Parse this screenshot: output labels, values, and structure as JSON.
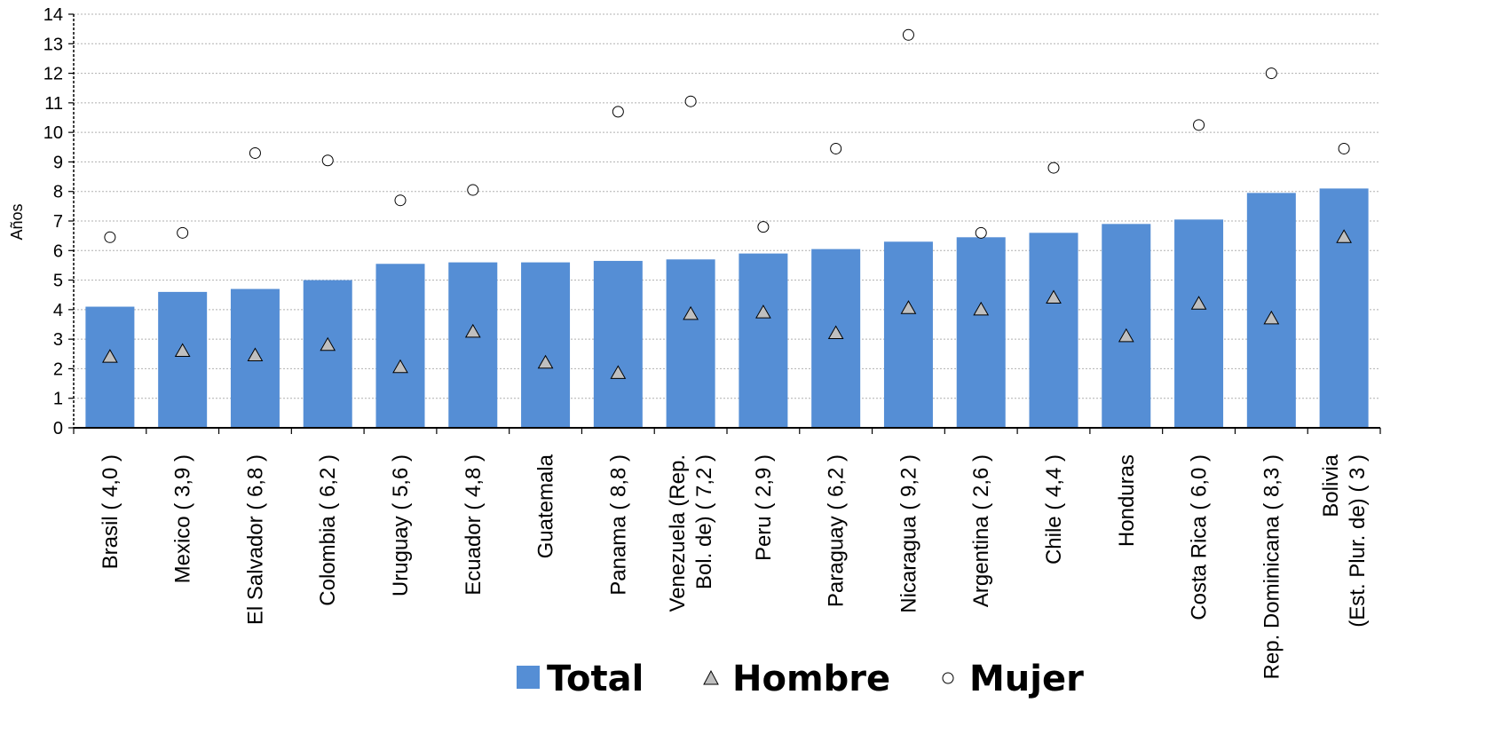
{
  "chart_data": {
    "type": "bar",
    "ylabel": "Años",
    "xlabel": "",
    "ylim": [
      0,
      14
    ],
    "yticks": [
      0,
      1,
      2,
      3,
      4,
      5,
      6,
      7,
      8,
      9,
      10,
      11,
      12,
      13,
      14
    ],
    "grid": true,
    "legend_position": "bottom",
    "categories": [
      [
        "Brasil  ( 4,0 )"
      ],
      [
        "Mexico ( 3,9 )"
      ],
      [
        "El Salvador ( 6,8 )"
      ],
      [
        "Colombia ( 6,2 )"
      ],
      [
        "Uruguay ( 5,6 )"
      ],
      [
        "Ecuador  ( 4,8 )"
      ],
      [
        "Guatemala"
      ],
      [
        "Panama ( 8,8 )"
      ],
      [
        "Venezuela (Rep.",
        "Bol. de)  ( 7,2 )"
      ],
      [
        "Peru  ( 2,9 )"
      ],
      [
        "Paraguay ( 6,2 )"
      ],
      [
        "Nicaragua ( 9,2 )"
      ],
      [
        "Argentina  ( 2,6 )"
      ],
      [
        "Chile  ( 4,4 )"
      ],
      [
        "Honduras"
      ],
      [
        "Costa Rica ( 6,0 )"
      ],
      [
        "Rep. Dominicana ( 8,3 )"
      ],
      [
        "Bolivia",
        "(Est. Plur. de) ( 3 )"
      ]
    ],
    "series": [
      {
        "name": "Total",
        "type": "bar",
        "color": "#558ed5",
        "values": [
          4.1,
          4.6,
          4.7,
          5.0,
          5.55,
          5.6,
          5.6,
          5.65,
          5.7,
          5.9,
          6.05,
          6.3,
          6.45,
          6.6,
          6.9,
          7.05,
          7.95,
          8.1
        ]
      },
      {
        "name": "Hombre",
        "type": "marker",
        "marker": "triangle",
        "color": "#bfbfbf",
        "values": [
          2.4,
          2.6,
          2.45,
          2.8,
          2.05,
          3.25,
          2.2,
          1.85,
          3.85,
          3.9,
          3.2,
          4.05,
          4.0,
          4.4,
          3.1,
          4.2,
          3.7,
          6.45
        ]
      },
      {
        "name": "Mujer",
        "type": "marker",
        "marker": "circle",
        "color": "#ffffff",
        "values": [
          6.45,
          6.6,
          9.3,
          9.05,
          7.7,
          8.05,
          null,
          10.7,
          11.05,
          6.8,
          9.45,
          13.3,
          6.6,
          8.8,
          null,
          10.25,
          12.0,
          9.45
        ]
      }
    ]
  }
}
